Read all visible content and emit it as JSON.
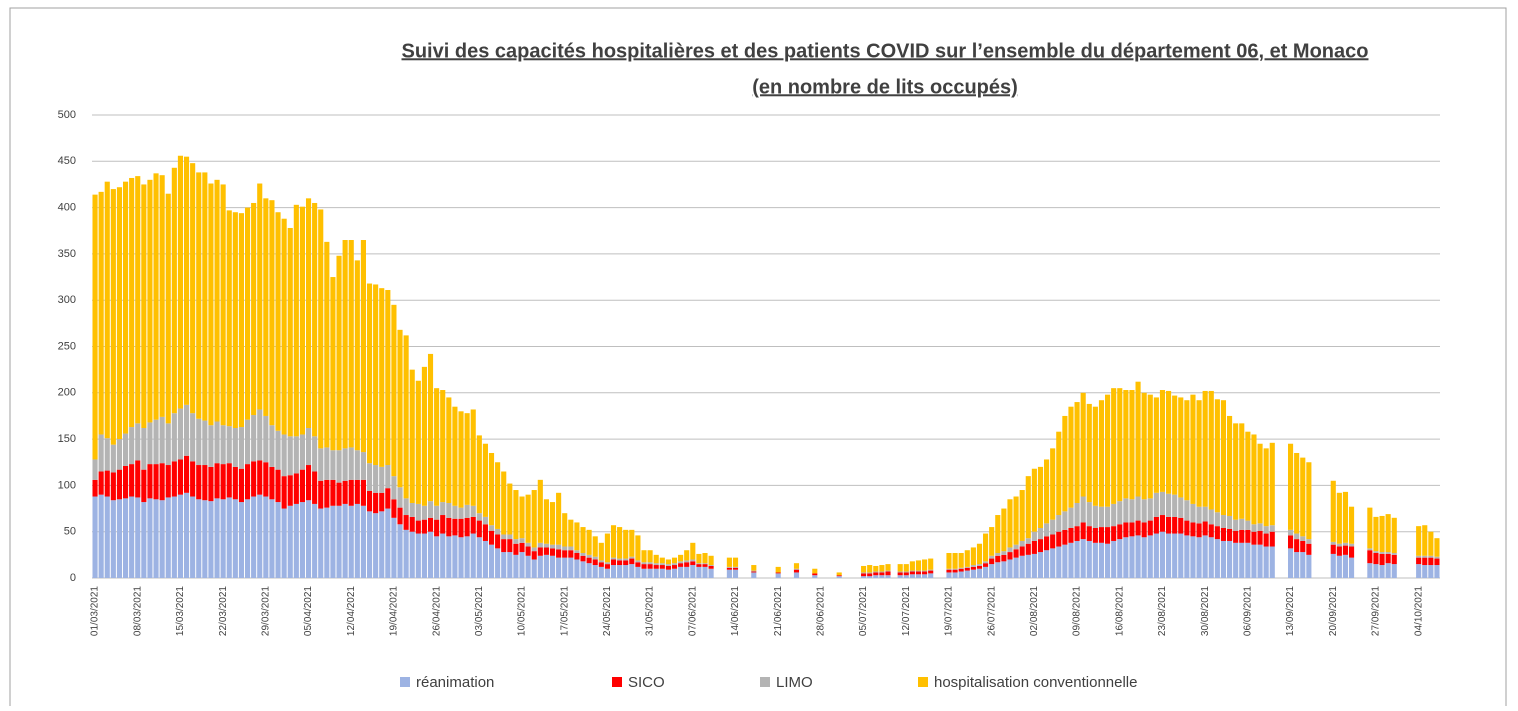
{
  "chart_data": {
    "type": "stacked_bar",
    "title": "Suivi des capacités hospitalières  et des patients COVID sur l’ensemble du département 06, et Monaco",
    "subtitle": "(en nombre de lits occupés)",
    "ylim": [
      0,
      500
    ],
    "yticks": [
      0,
      50,
      100,
      150,
      200,
      250,
      300,
      350,
      400,
      450,
      500
    ],
    "grid": true,
    "legend": "bottom",
    "categories": [
      "01/03/2021",
      null,
      null,
      null,
      null,
      null,
      null,
      "08/03/2021",
      null,
      null,
      null,
      null,
      null,
      null,
      "15/03/2021",
      null,
      null,
      null,
      null,
      null,
      null,
      "22/03/2021",
      null,
      null,
      null,
      null,
      null,
      null,
      "29/03/2021",
      null,
      null,
      null,
      null,
      null,
      null,
      "05/04/2021",
      null,
      null,
      null,
      null,
      null,
      null,
      "12/04/2021",
      null,
      null,
      null,
      null,
      null,
      null,
      "19/04/2021",
      null,
      null,
      null,
      null,
      null,
      null,
      "26/04/2021",
      null,
      null,
      null,
      null,
      null,
      null,
      "03/05/2021",
      null,
      null,
      null,
      null,
      null,
      null,
      "10/05/2021",
      null,
      null,
      null,
      null,
      null,
      null,
      "17/05/2021",
      null,
      null,
      null,
      null,
      null,
      null,
      "24/05/2021",
      null,
      null,
      null,
      null,
      null,
      null,
      "31/05/2021",
      null,
      null,
      null,
      null,
      null,
      null,
      "07/06/2021",
      null,
      null,
      null,
      null,
      null,
      null,
      "14/06/2021",
      null,
      null,
      null,
      null,
      null,
      null,
      "21/06/2021",
      null,
      null,
      null,
      null,
      null,
      null,
      "28/06/2021",
      null,
      null,
      null,
      null,
      null,
      null,
      "05/07/2021",
      null,
      null,
      null,
      null,
      null,
      null,
      "12/07/2021",
      null,
      null,
      null,
      null,
      null,
      null,
      "19/07/2021",
      null,
      null,
      null,
      null,
      null,
      null,
      "26/07/2021",
      null,
      null,
      null,
      null,
      null,
      null,
      "02/08/2021",
      null,
      null,
      null,
      null,
      null,
      null,
      "09/08/2021",
      null,
      null,
      null,
      null,
      null,
      null,
      "16/08/2021",
      null,
      null,
      null,
      null,
      null,
      null,
      "23/08/2021",
      null,
      null,
      null,
      null,
      null,
      null,
      "30/08/2021",
      null,
      null,
      null,
      null,
      null,
      null,
      "06/09/2021",
      null,
      null,
      null,
      null,
      null,
      null,
      "13/09/2021",
      null,
      null,
      null,
      null,
      null,
      null,
      "20/09/2021",
      null,
      null,
      null,
      null,
      null,
      null,
      "27/09/2021",
      null,
      null,
      null,
      null,
      null,
      null,
      "04/10/2021",
      null,
      null,
      null
    ],
    "series": [
      {
        "name": "réanimation",
        "color": "#9db3e3",
        "values": [
          88,
          90,
          88,
          84,
          85,
          86,
          88,
          87,
          82,
          86,
          85,
          84,
          87,
          88,
          90,
          92,
          88,
          85,
          84,
          83,
          86,
          85,
          87,
          85,
          82,
          85,
          88,
          90,
          88,
          85,
          82,
          75,
          78,
          80,
          82,
          84,
          80,
          75,
          76,
          78,
          78,
          80,
          78,
          80,
          78,
          72,
          70,
          72,
          75,
          65,
          58,
          52,
          50,
          48,
          48,
          50,
          45,
          48,
          45,
          46,
          44,
          45,
          48,
          44,
          40,
          36,
          32,
          28,
          28,
          25,
          28,
          24,
          20,
          24,
          25,
          24,
          22,
          22,
          22,
          20,
          18,
          16,
          14,
          12,
          10,
          14,
          14,
          14,
          15,
          12,
          10,
          10,
          10,
          10,
          9,
          10,
          12,
          12,
          14,
          12,
          12,
          10,
          null,
          null,
          9,
          9,
          null,
          null,
          6,
          null,
          null,
          null,
          5,
          null,
          null,
          6,
          null,
          null,
          3,
          null,
          null,
          null,
          2,
          null,
          null,
          null,
          2,
          2,
          3,
          3,
          3,
          null,
          3,
          3,
          4,
          4,
          4,
          5,
          null,
          null,
          6,
          6,
          7,
          8,
          9,
          10,
          12,
          15,
          17,
          18,
          20,
          22,
          24,
          25,
          26,
          28,
          30,
          32,
          34,
          36,
          38,
          40,
          42,
          40,
          38,
          38,
          37,
          40,
          42,
          44,
          45,
          46,
          44,
          46,
          48,
          50,
          48,
          48,
          48,
          46,
          45,
          44,
          46,
          44,
          42,
          40,
          40,
          38,
          38,
          38,
          36,
          36,
          34,
          34,
          null,
          null,
          32,
          28,
          28,
          25,
          null,
          null,
          null,
          26,
          24,
          25,
          22,
          null,
          null,
          16,
          15,
          14,
          16,
          15,
          null,
          null,
          null,
          15,
          14,
          14,
          14
        ]
      },
      {
        "name": "SICO",
        "color": "#ff0000",
        "values": [
          18,
          25,
          28,
          30,
          32,
          35,
          35,
          40,
          35,
          37,
          38,
          40,
          35,
          38,
          38,
          40,
          38,
          37,
          38,
          37,
          38,
          38,
          37,
          35,
          36,
          38,
          38,
          37,
          37,
          35,
          35,
          35,
          33,
          33,
          35,
          38,
          35,
          30,
          30,
          28,
          25,
          25,
          28,
          26,
          28,
          22,
          22,
          20,
          22,
          20,
          18,
          16,
          16,
          14,
          15,
          15,
          18,
          20,
          20,
          18,
          20,
          20,
          18,
          18,
          18,
          15,
          15,
          14,
          14,
          12,
          10,
          10,
          9,
          9,
          8,
          8,
          9,
          8,
          8,
          7,
          6,
          6,
          6,
          5,
          5,
          6,
          5,
          5,
          6,
          5,
          5,
          5,
          4,
          4,
          4,
          4,
          4,
          5,
          4,
          3,
          3,
          3,
          null,
          null,
          2,
          2,
          null,
          null,
          1,
          null,
          null,
          null,
          1,
          null,
          null,
          3,
          null,
          null,
          2,
          null,
          null,
          null,
          1,
          null,
          null,
          null,
          3,
          3,
          3,
          3,
          4,
          null,
          3,
          3,
          3,
          3,
          3,
          3,
          null,
          null,
          3,
          3,
          3,
          3,
          3,
          3,
          4,
          6,
          7,
          7,
          8,
          9,
          10,
          12,
          14,
          14,
          15,
          15,
          16,
          16,
          16,
          16,
          18,
          16,
          16,
          17,
          18,
          16,
          16,
          16,
          15,
          16,
          16,
          16,
          18,
          18,
          18,
          18,
          17,
          16,
          15,
          15,
          15,
          14,
          14,
          14,
          13,
          13,
          14,
          14,
          14,
          15,
          14,
          16,
          null,
          null,
          14,
          14,
          12,
          12,
          null,
          null,
          null,
          10,
          10,
          10,
          12,
          null,
          null,
          14,
          12,
          12,
          10,
          10,
          null,
          null,
          null,
          7,
          8,
          8,
          7
        ]
      },
      {
        "name": "LIMO",
        "color": "#b4b4b4",
        "values": [
          22,
          40,
          35,
          30,
          33,
          35,
          40,
          40,
          45,
          45,
          48,
          50,
          45,
          52,
          55,
          55,
          52,
          50,
          48,
          45,
          45,
          42,
          40,
          42,
          45,
          48,
          50,
          55,
          50,
          45,
          42,
          45,
          42,
          40,
          38,
          40,
          38,
          35,
          35,
          32,
          35,
          35,
          35,
          32,
          30,
          30,
          30,
          28,
          25,
          25,
          22,
          18,
          15,
          18,
          15,
          18,
          15,
          14,
          16,
          14,
          12,
          14,
          12,
          8,
          8,
          6,
          6,
          5,
          5,
          5,
          5,
          4,
          4,
          5,
          4,
          4,
          5,
          4,
          4,
          3,
          3,
          3,
          3,
          2,
          2,
          2,
          2,
          2,
          2,
          2,
          2,
          2,
          2,
          2,
          2,
          2,
          2,
          2,
          2,
          1,
          1,
          1,
          null,
          null,
          1,
          1,
          null,
          null,
          1,
          null,
          null,
          null,
          0,
          null,
          null,
          1,
          null,
          null,
          0,
          null,
          null,
          null,
          0,
          null,
          null,
          null,
          1,
          1,
          1,
          1,
          1,
          null,
          1,
          1,
          1,
          1,
          1,
          1,
          null,
          null,
          1,
          1,
          1,
          1,
          2,
          2,
          2,
          3,
          3,
          4,
          5,
          5,
          6,
          6,
          10,
          12,
          14,
          16,
          18,
          20,
          22,
          25,
          28,
          26,
          24,
          22,
          22,
          24,
          25,
          26,
          25,
          26,
          25,
          24,
          26,
          25,
          25,
          24,
          22,
          22,
          20,
          18,
          16,
          16,
          15,
          14,
          14,
          12,
          12,
          10,
          8,
          8,
          8,
          7,
          null,
          null,
          6,
          6,
          5,
          5,
          null,
          null,
          null,
          3,
          3,
          3,
          3,
          null,
          null,
          2,
          2,
          2,
          2,
          2,
          null,
          null,
          null,
          2,
          2,
          2,
          2
        ]
      },
      {
        "name": "hospitalisation conventionnelle",
        "color": "#ffc000",
        "values": [
          286,
          262,
          277,
          276,
          272,
          272,
          269,
          267,
          263,
          262,
          266,
          261,
          248,
          265,
          273,
          268,
          270,
          266,
          268,
          261,
          261,
          260,
          233,
          233,
          231,
          229,
          229,
          244,
          235,
          243,
          236,
          233,
          225,
          250,
          246,
          248,
          252,
          258,
          222,
          187,
          210,
          225,
          224,
          205,
          229,
          194,
          195,
          193,
          189,
          185,
          170,
          176,
          144,
          133,
          150,
          159,
          127,
          121,
          114,
          107,
          104,
          99,
          104,
          84,
          79,
          78,
          72,
          68,
          55,
          53,
          45,
          52,
          62,
          68,
          48,
          46,
          56,
          36,
          29,
          30,
          28,
          27,
          22,
          19,
          31,
          35,
          34,
          31,
          29,
          27,
          13,
          13,
          9,
          6,
          5,
          6,
          7,
          11,
          18,
          10,
          11,
          10,
          null,
          null,
          10,
          10,
          null,
          null,
          6,
          null,
          null,
          null,
          6,
          null,
          null,
          6,
          null,
          null,
          5,
          null,
          null,
          null,
          3,
          null,
          null,
          null,
          7,
          8,
          6,
          7,
          7,
          null,
          8,
          8,
          10,
          11,
          12,
          12,
          null,
          null,
          17,
          17,
          16,
          18,
          19,
          22,
          30,
          31,
          41,
          46,
          52,
          52,
          55,
          67,
          68,
          66,
          69,
          77,
          90,
          103,
          109,
          109,
          112,
          106,
          107,
          115,
          121,
          125,
          122,
          117,
          118,
          124,
          115,
          112,
          103,
          110,
          111,
          107,
          108,
          108,
          118,
          115,
          125,
          128,
          122,
          124,
          108,
          104,
          103,
          96,
          97,
          86,
          84,
          89,
          null,
          null,
          93,
          87,
          85,
          83,
          null,
          null,
          null,
          66,
          55,
          55,
          40,
          null,
          null,
          44,
          37,
          39,
          41,
          38,
          null,
          null,
          null,
          32,
          33,
          26,
          20
        ]
      }
    ]
  }
}
